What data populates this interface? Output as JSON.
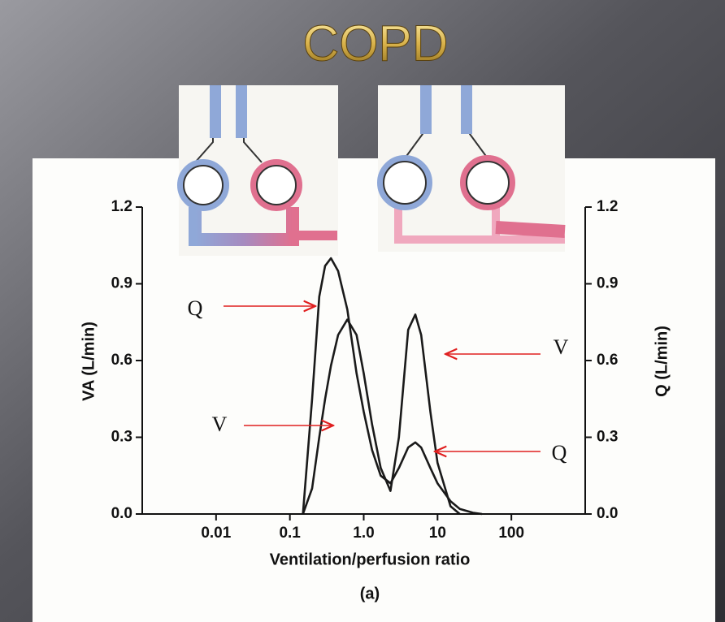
{
  "chart_data": {
    "type": "line",
    "title": "COPD",
    "x_label": "Ventilation/perfusion ratio",
    "y_label": "VA (L/min)",
    "y2_label": "Q (L/min)",
    "caption": "(a)",
    "log_x": true,
    "xlim": [
      0.001,
      1000
    ],
    "xticks": [
      0.01,
      0.1,
      {
        "value": 1,
        "label": "1.0"
      },
      10,
      100
    ],
    "ylim": [
      0,
      1.2
    ],
    "yticks": [
      {
        "value": 0,
        "label": "0.0"
      },
      0.3,
      0.6,
      0.9,
      1.2
    ],
    "y2lim": [
      0,
      1.2
    ],
    "y2ticks": [
      {
        "value": 0,
        "label": "0.0"
      },
      0.3,
      0.6,
      0.9,
      1.2
    ],
    "x": [
      0.15,
      0.2,
      0.25,
      0.3,
      0.36,
      0.45,
      0.6,
      0.8,
      1,
      1.3,
      1.7,
      2.3,
      3,
      4,
      5,
      6,
      8,
      10,
      15,
      20,
      30,
      40
    ],
    "series": [
      {
        "color": "#1a1a1a",
        "axis": "y2",
        "values": [
          0,
          0.45,
          0.85,
          0.97,
          1.0,
          0.95,
          0.8,
          0.55,
          0.4,
          0.25,
          0.15,
          0.12,
          0.18,
          0.26,
          0.28,
          0.26,
          0.18,
          0.12,
          0.05,
          0.02,
          0.005,
          0
        ]
      },
      {
        "color": "#1a1a1a",
        "values": [
          0,
          0.1,
          0.3,
          0.45,
          0.58,
          0.7,
          0.76,
          0.7,
          0.55,
          0.35,
          0.18,
          0.09,
          0.3,
          0.72,
          0.78,
          0.7,
          0.4,
          0.2,
          0.03,
          0,
          null,
          null
        ]
      }
    ],
    "annotations": [
      {
        "text": "Q"
      },
      {
        "text": "V"
      },
      {
        "text": "V"
      },
      {
        "text": "Q"
      }
    ]
  }
}
